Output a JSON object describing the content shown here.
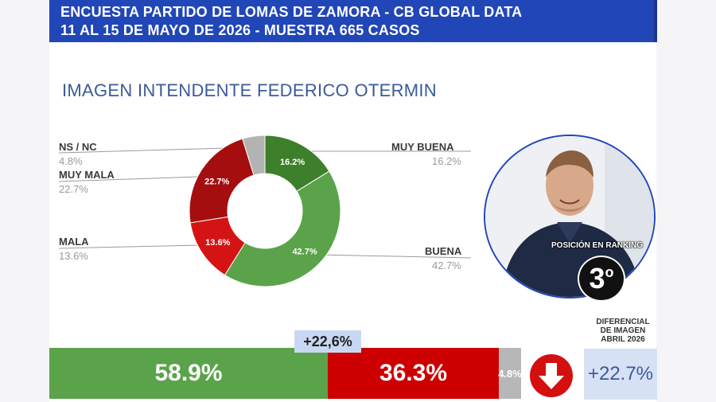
{
  "header": {
    "line1": "ENCUESTA PARTIDO DE LOMAS DE ZAMORA - CB GLOBAL DATA",
    "line2": "11 AL 15 DE MAYO DE 2026 - MUESTRA 665 CASOS"
  },
  "chart_title": "IMAGEN INTENDENTE  FEDERICO OTERMIN",
  "chart_data": {
    "type": "pie",
    "title": "IMAGEN INTENDENTE  FEDERICO OTERMIN",
    "categories": [
      "MUY BUENA",
      "BUENA",
      "MALA",
      "MUY MALA",
      "NS / NC"
    ],
    "values": [
      16.2,
      42.7,
      13.6,
      22.7,
      4.8
    ],
    "slice_labels": [
      "16.2%",
      "42.7%",
      "13.6%",
      "22.7%",
      ""
    ],
    "value_labels": [
      "16.2%",
      "42.7%",
      "13.6%",
      "22.7%",
      "4.8%"
    ],
    "colors": [
      "#3d7f2a",
      "#5aa34a",
      "#d41414",
      "#a50e0e",
      "#b3b3b3"
    ],
    "legend": "outside labels"
  },
  "summary_bar": {
    "positive": "58.9%",
    "negative": "36.3%",
    "nsnc": "4.8%",
    "positive_value": 58.9,
    "negative_value": 36.3,
    "nsnc_value": 4.8,
    "difference": "+22,6%"
  },
  "ranking": {
    "label": "POSICIÓN EN RANKING",
    "position": "3",
    "suffix": "o"
  },
  "diferencial": {
    "title_line1": "DIFERENCIAL",
    "title_line2": "DE IMAGEN",
    "title_line3": "ABRIL 2026",
    "value": "+22.7%",
    "trend_icon": "arrow-down-icon"
  },
  "colors": {
    "header_bg": "#2146b8",
    "positive": "#5aa34a",
    "negative": "#cc0000",
    "neutral": "#b7b7b7",
    "title_text": "#3b5a9a"
  }
}
